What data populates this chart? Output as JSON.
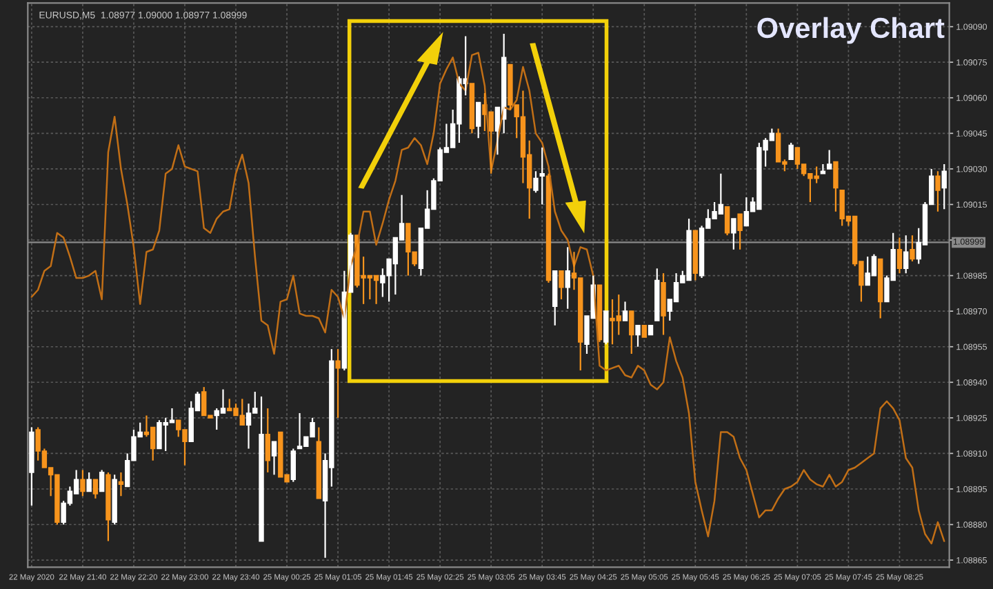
{
  "chart_data": {
    "type": "candlestick",
    "title": "Overlay Chart",
    "annotations": [
      "EURUSD,M5  1.08977 1.09000 1.08977 1.08999"
    ],
    "categories": [
      "22 May 2020",
      null,
      null,
      null,
      null,
      null,
      null,
      null,
      "22 May 21:40",
      null,
      null,
      null,
      null,
      null,
      null,
      null,
      "22 May 22:20",
      null,
      null,
      null,
      null,
      null,
      null,
      null,
      "22 May 23:00",
      null,
      null,
      null,
      null,
      null,
      null,
      null,
      "22 May 23:40",
      null,
      null,
      null,
      null,
      null,
      null,
      null,
      "25 May 00:25",
      null,
      null,
      null,
      null,
      null,
      null,
      null,
      "25 May 01:05",
      null,
      null,
      null,
      null,
      null,
      null,
      null,
      "25 May 01:45",
      null,
      null,
      null,
      null,
      null,
      null,
      null,
      "25 May 02:25",
      null,
      null,
      null,
      null,
      null,
      null,
      null,
      "25 May 03:05",
      null,
      null,
      null,
      null,
      null,
      null,
      null,
      "25 May 03:45",
      null,
      null,
      null,
      null,
      null,
      null,
      null,
      "25 May 04:25",
      null,
      null,
      null,
      null,
      null,
      null,
      null,
      "25 May 05:05",
      null,
      null,
      null,
      null,
      null,
      null,
      null,
      "25 May 05:45",
      null,
      null,
      null,
      null,
      null,
      null,
      null,
      "25 May 06:25",
      null,
      null,
      null,
      null,
      null,
      null,
      null,
      "25 May 07:05",
      null,
      null,
      null,
      null,
      null,
      null,
      null,
      "25 May 07:45",
      null,
      null,
      null,
      null,
      null,
      null,
      null,
      "25 May 08:25",
      null,
      null,
      null,
      null,
      null,
      null,
      null
    ],
    "colors": [
      "#ffffff",
      "#f7941d",
      "#f7941d",
      "#f7941d",
      "#f7941d",
      "#ffffff",
      "#ffffff",
      "#ffffff",
      "#f7941d",
      "#ffffff",
      "#f7941d",
      "#ffffff",
      "#f7941d",
      "#ffffff",
      "#f7941d",
      "#ffffff",
      "#ffffff",
      "#ffffff",
      "#f7941d",
      "#f7941d",
      "#ffffff",
      "#ffffff",
      "#ffffff",
      "#f7941d",
      "#f7941d",
      "#ffffff",
      "#ffffff",
      "#f7941d",
      "#f7941d",
      "#ffffff",
      "#ffffff",
      "#f7941d",
      "#f7941d",
      "#f7941d",
      "#ffffff",
      "#ffffff",
      "#ffffff",
      "#f7941d",
      "#ffffff",
      "#f7941d",
      "#f7941d",
      "#ffffff",
      "#ffffff",
      "#ffffff",
      "#ffffff",
      "#f7941d",
      "#ffffff",
      "#ffffff",
      "#f7941d",
      "#ffffff",
      "#ffffff",
      "#f7941d",
      "#f7941d",
      "#f7941d",
      "#f7941d",
      "#ffffff",
      "#ffffff",
      "#ffffff",
      "#ffffff",
      "#f7941d",
      "#f7941d",
      "#ffffff",
      "#ffffff",
      "#ffffff",
      "#ffffff",
      "#ffffff",
      "#ffffff",
      "#ffffff",
      "#ffffff",
      "#f7941d",
      "#ffffff",
      "#f7941d",
      "#f7941d",
      "#ffffff",
      "#ffffff",
      "#f7941d",
      "#f7941d",
      "#f7941d",
      "#f7941d",
      "#ffffff",
      "#ffffff",
      "#f7941d",
      "#ffffff",
      "#f7941d",
      "#ffffff",
      "#f7941d",
      "#f7941d",
      "#ffffff",
      "#ffffff",
      "#f7941d",
      "#ffffff",
      "#f7941d",
      "#f7941d",
      "#ffffff",
      "#f7941d",
      "#ffffff",
      "#f7941d",
      "#ffffff",
      "#ffffff",
      "#f7941d",
      "#ffffff",
      "#ffffff",
      "#ffffff",
      "#ffffff",
      "#f7941d",
      "#ffffff",
      "#ffffff",
      "#ffffff",
      "#ffffff",
      "#f7941d",
      "#ffffff",
      "#f7941d",
      "#ffffff",
      "#ffffff",
      "#ffffff",
      "#ffffff",
      "#ffffff",
      "#f7941d",
      "#f7941d",
      "#ffffff",
      "#f7941d",
      "#f7941d",
      "#f7941d",
      "#f7941d",
      "#ffffff",
      "#ffffff",
      "#f7941d",
      "#f7941d",
      "#f7941d",
      "#f7941d",
      "#f7941d",
      "#ffffff",
      "#ffffff",
      "#f7941d",
      "#ffffff",
      "#ffffff",
      "#f7941d",
      "#ffffff",
      "#f7941d",
      "#ffffff",
      "#ffffff",
      "#ffffff",
      "#f7941d",
      "#ffffff"
    ],
    "ohlc": [
      [
        1.08902,
        1.08921,
        1.08888,
        1.08919
      ],
      [
        1.0892,
        1.08921,
        1.08907,
        1.08911
      ],
      [
        1.08911,
        1.08912,
        1.08904,
        1.08904
      ],
      [
        1.08904,
        1.08904,
        1.08892,
        1.08901
      ],
      [
        1.08901,
        1.08901,
        1.0888,
        1.08881
      ],
      [
        1.08881,
        1.0889,
        1.0888,
        1.08889
      ],
      [
        1.08889,
        1.08896,
        1.08888,
        1.08894
      ],
      [
        1.08893,
        1.08903,
        1.08893,
        1.08899
      ],
      [
        1.08899,
        1.08903,
        1.08892,
        1.08894
      ],
      [
        1.08894,
        1.08902,
        1.08894,
        1.08899
      ],
      [
        1.08899,
        1.08899,
        1.08891,
        1.08893
      ],
      [
        1.08894,
        1.08903,
        1.08894,
        1.08902
      ],
      [
        1.08901,
        1.08902,
        1.08873,
        1.08882
      ],
      [
        1.08881,
        1.08901,
        1.0888,
        1.08899
      ],
      [
        1.08898,
        1.08902,
        1.08892,
        1.08897
      ],
      [
        1.08896,
        1.0891,
        1.08896,
        1.08907
      ],
      [
        1.08907,
        1.0892,
        1.08907,
        1.08917
      ],
      [
        1.08917,
        1.08923,
        1.08917,
        1.08919
      ],
      [
        1.08919,
        1.08926,
        1.08917,
        1.08918
      ],
      [
        1.08921,
        1.08921,
        1.08907,
        1.08912
      ],
      [
        1.08912,
        1.08924,
        1.08912,
        1.08923
      ],
      [
        1.08922,
        1.08925,
        1.08911,
        1.08923
      ],
      [
        1.08923,
        1.08929,
        1.08923,
        1.08924
      ],
      [
        1.08924,
        1.08924,
        1.08917,
        1.0892
      ],
      [
        1.0892,
        1.0892,
        1.08905,
        1.08915
      ],
      [
        1.08915,
        1.08932,
        1.08915,
        1.08929
      ],
      [
        1.08928,
        1.08936,
        1.08928,
        1.08935
      ],
      [
        1.08936,
        1.08938,
        1.08926,
        1.08926
      ],
      [
        1.08926,
        1.08926,
        1.08925,
        1.08925
      ],
      [
        1.08926,
        1.08929,
        1.0892,
        1.08928
      ],
      [
        1.08927,
        1.08937,
        1.08927,
        1.08929
      ],
      [
        1.08929,
        1.08933,
        1.08928,
        1.08928
      ],
      [
        1.08929,
        1.08931,
        1.08926,
        1.08926
      ],
      [
        1.08926,
        1.08933,
        1.08922,
        1.08922
      ],
      [
        1.08922,
        1.08931,
        1.08912,
        1.08927
      ],
      [
        1.08927,
        1.08936,
        1.08927,
        1.08929
      ],
      [
        1.08873,
        1.08934,
        1.08873,
        1.08918
      ],
      [
        1.08918,
        1.08929,
        1.08902,
        1.08907
      ],
      [
        1.08909,
        1.08915,
        1.08901,
        1.08915
      ],
      [
        1.08919,
        1.08919,
        1.089,
        1.089
      ],
      [
        1.08901,
        1.08901,
        1.08898,
        1.08898
      ],
      [
        1.08899,
        1.08912,
        1.08898,
        1.08911
      ],
      [
        1.08912,
        1.08927,
        1.08912,
        1.08913
      ],
      [
        1.08913,
        1.08917,
        1.08913,
        1.08917
      ],
      [
        1.08917,
        1.08925,
        1.08917,
        1.08923
      ],
      [
        1.08915,
        1.08921,
        1.08891,
        1.08891
      ],
      [
        1.0889,
        1.0891,
        1.08866,
        1.08907
      ],
      [
        1.08904,
        1.08954,
        1.08896,
        1.08949
      ],
      [
        1.08949,
        1.08954,
        1.08925,
        1.08946
      ],
      [
        1.08946,
        1.08987,
        1.08945,
        1.08978
      ],
      [
        1.08978,
        1.09003,
        1.08978,
        1.09002
      ],
      [
        1.09002,
        1.09002,
        1.0898,
        1.08981
      ],
      [
        1.08985,
        1.08993,
        1.08973,
        1.08984
      ],
      [
        1.08985,
        1.08985,
        1.08975,
        1.08984
      ],
      [
        1.08985,
        1.08985,
        1.08973,
        1.08983
      ],
      [
        1.08982,
        1.08988,
        1.08976,
        1.08985
      ],
      [
        1.08985,
        1.08992,
        1.08974,
        1.08992
      ],
      [
        1.0899,
        1.09001,
        1.08977,
        1.09001
      ],
      [
        1.09,
        1.09019,
        1.09,
        1.09007
      ],
      [
        1.09007,
        1.09007,
        1.08985,
        1.08995
      ],
      [
        1.08995,
        1.08995,
        1.08989,
        1.0899
      ],
      [
        1.08988,
        1.09005,
        1.08985,
        1.09005
      ],
      [
        1.09005,
        1.09021,
        1.09005,
        1.09013
      ],
      [
        1.09013,
        1.09026,
        1.09013,
        1.09025
      ],
      [
        1.09025,
        1.09039,
        1.09025,
        1.09038
      ],
      [
        1.09037,
        1.09049,
        1.09037,
        1.09039
      ],
      [
        1.09039,
        1.09055,
        1.09039,
        1.09049
      ],
      [
        1.09049,
        1.09069,
        1.09041,
        1.09068
      ],
      [
        1.09066,
        1.09086,
        1.09061,
        1.09068
      ],
      [
        1.09066,
        1.09066,
        1.09045,
        1.09047
      ],
      [
        1.09048,
        1.09058,
        1.09043,
        1.09058
      ],
      [
        1.09057,
        1.09062,
        1.09046,
        1.09053
      ],
      [
        1.09054,
        1.09054,
        1.09028,
        1.09046
      ],
      [
        1.09046,
        1.09056,
        1.09036,
        1.09056
      ],
      [
        1.09051,
        1.09087,
        1.09045,
        1.09077
      ],
      [
        1.09074,
        1.09074,
        1.09055,
        1.09057
      ],
      [
        1.09057,
        1.09057,
        1.09043,
        1.09052
      ],
      [
        1.09052,
        1.09063,
        1.09024,
        1.09035
      ],
      [
        1.09036,
        1.09042,
        1.09009,
        1.09022
      ],
      [
        1.09021,
        1.09029,
        1.0902,
        1.09026
      ],
      [
        1.09027,
        1.09039,
        1.09015,
        1.09028
      ],
      [
        1.09027,
        1.09028,
        1.08982,
        1.08983
      ],
      [
        1.08972,
        1.08987,
        1.08964,
        1.08987
      ],
      [
        1.08987,
        1.08987,
        1.08975,
        1.0898
      ],
      [
        1.0898,
        1.08997,
        1.08971,
        1.08987
      ],
      [
        1.08986,
        1.08995,
        1.08979,
        1.08984
      ],
      [
        1.08984,
        1.08984,
        1.08945,
        1.08957
      ],
      [
        1.08956,
        1.08968,
        1.08952,
        1.08968
      ],
      [
        1.08967,
        1.08985,
        1.08967,
        1.08981
      ],
      [
        1.08981,
        1.08981,
        1.08957,
        1.08958
      ],
      [
        1.08957,
        1.0897,
        1.08956,
        1.0897
      ],
      [
        1.08967,
        1.08975,
        1.08956,
        1.08966
      ],
      [
        1.08968,
        1.08977,
        1.0896,
        1.08966
      ],
      [
        1.08966,
        1.08974,
        1.08966,
        1.0897
      ],
      [
        1.0897,
        1.0897,
        1.08952,
        1.0896
      ],
      [
        1.0896,
        1.08964,
        1.08955,
        1.08964
      ],
      [
        1.08964,
        1.08964,
        1.08959,
        1.08959
      ],
      [
        1.0896,
        1.08964,
        1.0896,
        1.08964
      ],
      [
        1.08966,
        1.08988,
        1.08966,
        1.08983
      ],
      [
        1.08982,
        1.08986,
        1.0896,
        1.08968
      ],
      [
        1.0897,
        1.08975,
        1.08966,
        1.08975
      ],
      [
        1.08974,
        1.08986,
        1.08974,
        1.08982
      ],
      [
        1.08982,
        1.08987,
        1.08982,
        1.08985
      ],
      [
        1.08983,
        1.09009,
        1.08983,
        1.09004
      ],
      [
        1.09004,
        1.09004,
        1.08983,
        1.08986
      ],
      [
        1.08985,
        1.09006,
        1.08984,
        1.09005
      ],
      [
        1.09005,
        1.09013,
        1.09005,
        1.09009
      ],
      [
        1.09009,
        1.09016,
        1.09009,
        1.09012
      ],
      [
        1.09011,
        1.09028,
        1.09011,
        1.09015
      ],
      [
        1.09014,
        1.09014,
        1.09002,
        1.09003
      ],
      [
        1.09003,
        1.09009,
        1.08996,
        1.09009
      ],
      [
        1.09011,
        1.09011,
        1.08996,
        1.09004
      ],
      [
        1.09006,
        1.09018,
        1.09006,
        1.09012
      ],
      [
        1.09012,
        1.09018,
        1.09012,
        1.09016
      ],
      [
        1.09013,
        1.09041,
        1.09013,
        1.09039
      ],
      [
        1.09038,
        1.09043,
        1.09031,
        1.09042
      ],
      [
        1.09042,
        1.09047,
        1.09042,
        1.09045
      ],
      [
        1.09045,
        1.09047,
        1.09033,
        1.09033
      ],
      [
        1.09033,
        1.09034,
        1.09029,
        1.09032
      ],
      [
        1.09034,
        1.09041,
        1.09034,
        1.0904
      ],
      [
        1.09039,
        1.09039,
        1.0903,
        1.09032
      ],
      [
        1.09032,
        1.09032,
        1.09027,
        1.09028
      ],
      [
        1.09028,
        1.09028,
        1.09016,
        1.09026
      ],
      [
        1.09027,
        1.09031,
        1.09024,
        1.09026
      ],
      [
        1.09028,
        1.09032,
        1.09028,
        1.09029
      ],
      [
        1.0903,
        1.09038,
        1.0903,
        1.09032
      ],
      [
        1.09033,
        1.09033,
        1.09012,
        1.09022
      ],
      [
        1.09021,
        1.09021,
        1.09006,
        1.09009
      ],
      [
        1.0901,
        1.0901,
        1.09006,
        1.09008
      ],
      [
        1.0901,
        1.0901,
        1.08989,
        1.0899
      ],
      [
        1.08991,
        1.08991,
        1.08974,
        1.08981
      ],
      [
        1.08981,
        1.08993,
        1.08981,
        1.08986
      ],
      [
        1.08985,
        1.08994,
        1.08985,
        1.08993
      ],
      [
        1.08992,
        1.08992,
        1.08967,
        1.08974
      ],
      [
        1.08974,
        1.08985,
        1.08974,
        1.08984
      ],
      [
        1.08983,
        1.09003,
        1.08983,
        1.08996
      ],
      [
        1.08996,
        1.09001,
        1.08986,
        1.08988
      ],
      [
        1.08988,
        1.09002,
        1.08986,
        1.08995
      ],
      [
        1.08996,
        1.09002,
        1.08991,
        1.08992
      ],
      [
        1.08992,
        1.09005,
        1.0899,
        1.08999
      ],
      [
        1.08998,
        1.09016,
        1.08998,
        1.09015
      ],
      [
        1.09015,
        1.0903,
        1.09015,
        1.09027
      ],
      [
        1.09027,
        1.09029,
        1.09012,
        1.09021
      ],
      [
        1.09022,
        1.09032,
        1.09013,
        1.09029
      ]
    ],
    "series": [
      {
        "type": "line",
        "color": "#c26f16",
        "values": [
          1.08976,
          1.08979,
          1.08987,
          1.08989,
          1.09003,
          1.09001,
          1.08993,
          1.08984,
          1.08984,
          1.08985,
          1.08987,
          1.08975,
          1.09037,
          1.09052,
          1.0903,
          1.09015,
          1.08997,
          1.08973,
          1.08995,
          1.08996,
          1.09004,
          1.09028,
          1.0903,
          1.0904,
          1.09031,
          1.0903,
          1.09029,
          1.09005,
          1.09003,
          1.09009,
          1.09012,
          1.09013,
          1.09028,
          1.09036,
          1.09024,
          1.08993,
          1.08966,
          1.08964,
          1.08952,
          1.08974,
          1.08975,
          1.08985,
          1.08969,
          1.08968,
          1.08968,
          1.08967,
          1.08961,
          1.08979,
          1.08976,
          1.08967,
          1.08989,
          1.08998,
          1.09012,
          1.09012,
          1.08998,
          1.09007,
          1.09017,
          1.09025,
          1.09038,
          1.09039,
          1.09043,
          1.0904,
          1.09032,
          1.09045,
          1.09066,
          1.09072,
          1.09077,
          1.09066,
          1.09063,
          1.09078,
          1.09079,
          1.09065,
          1.09029,
          1.09042,
          1.09056,
          1.09055,
          1.09059,
          1.09073,
          1.09063,
          1.09045,
          1.09041,
          1.09031,
          1.09012,
          1.09004,
          1.09,
          1.08989,
          1.08997,
          1.08996,
          1.08985,
          1.08947,
          1.08945,
          1.08946,
          1.08947,
          1.08943,
          1.08942,
          1.08947,
          1.08945,
          1.08939,
          1.08937,
          1.0894,
          1.08959,
          1.08949,
          1.08942,
          1.08927,
          1.08898,
          1.08886,
          1.08875,
          1.0889,
          1.08919,
          1.08919,
          1.08917,
          1.08908,
          1.08903,
          1.08893,
          1.08883,
          1.08886,
          1.08886,
          1.08891,
          1.08895,
          1.08896,
          1.08898,
          1.08903,
          1.08899,
          1.08897,
          1.08896,
          1.08901,
          1.08896,
          1.08898,
          1.08903,
          1.08904,
          1.08906,
          1.08908,
          1.0891,
          1.08929,
          1.08932,
          1.08929,
          1.08924,
          1.08908,
          1.08904,
          1.08886,
          1.08876,
          1.08872,
          1.08881,
          1.08873
        ]
      }
    ],
    "ylim": [
      1.08862,
      1.091
    ],
    "yticks": [
      1.08865,
      {
        "value": 1.0888,
        "label": "1.08880"
      },
      1.08895,
      {
        "value": 1.0891,
        "label": "1.08910"
      },
      1.08925,
      {
        "value": 1.0894,
        "label": "1.08940"
      },
      1.08955,
      {
        "value": 1.0897,
        "label": "1.08970"
      },
      1.08985,
      {
        "value": 1.09,
        "label": null
      },
      1.09015,
      {
        "value": 1.0903,
        "label": "1.09030"
      },
      1.09045,
      {
        "value": 1.0906,
        "label": "1.09060"
      },
      1.09075,
      {
        "value": 1.0909,
        "label": "1.09090"
      }
    ],
    "grid": true,
    "ref_lines": [
      {
        "axis": "y",
        "value": 1.08999,
        "label": "1.08999",
        "color": "#8a8a8a"
      }
    ]
  }
}
